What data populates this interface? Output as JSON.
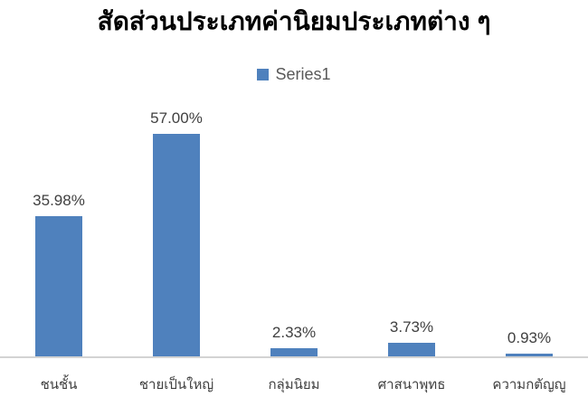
{
  "chart_data": {
    "type": "bar",
    "title": "สัดส่วนประเภทค่านิยมประเภทต่าง ๆ",
    "categories": [
      "ชนชั้น",
      "ชายเป็นใหญ่",
      "กลุ่มนิยม",
      "ศาสนาพุทธ",
      "ความกตัญญู"
    ],
    "series": [
      {
        "name": "Series1",
        "values": [
          35.98,
          57.0,
          2.33,
          3.73,
          0.93
        ]
      }
    ],
    "data_labels": [
      "35.98%",
      "57.00%",
      "2.33%",
      "3.73%",
      "0.93%"
    ],
    "unit": "%",
    "ylim": [
      0,
      57
    ],
    "grid": false,
    "legend_position": "top-center",
    "xlabel": "",
    "ylabel": ""
  },
  "colors": {
    "bar_fill": "#4f81bd",
    "title_text": "#000000",
    "legend_text": "#595959",
    "value_label_text": "#404040",
    "category_label_text": "#404040",
    "axis_line": "#d3d3d3",
    "background": "#ffffff"
  }
}
